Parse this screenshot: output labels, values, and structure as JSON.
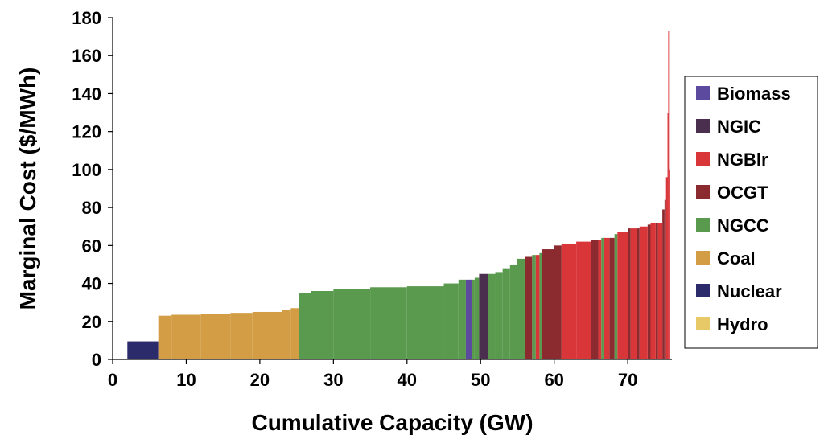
{
  "chart_data": {
    "type": "area",
    "xlabel": "Cumulative Capacity (GW)",
    "ylabel": "Marginal Cost ($/MWh)",
    "xlim": [
      0,
      76
    ],
    "ylim": [
      0,
      180
    ],
    "xticks": [
      0,
      10,
      20,
      30,
      40,
      50,
      60,
      70
    ],
    "yticks": [
      0,
      20,
      40,
      60,
      80,
      100,
      120,
      140,
      160,
      180
    ],
    "grid": false,
    "legend_position": "right",
    "legend": [
      {
        "name": "Biomass",
        "color": "#5b4a9e"
      },
      {
        "name": "NGIC",
        "color": "#4a2f4f"
      },
      {
        "name": "NGBlr",
        "color": "#d9363a"
      },
      {
        "name": "OCGT",
        "color": "#8b2a2f"
      },
      {
        "name": "NGCC",
        "color": "#5a9a4e"
      },
      {
        "name": "Coal",
        "color": "#d39d45"
      },
      {
        "name": "Nuclear",
        "color": "#2b2a6b"
      },
      {
        "name": "Hydro",
        "color": "#e8c968"
      }
    ],
    "series": [
      {
        "type": "Nuclear",
        "segments": [
          [
            2.0,
            6.2,
            9.5
          ]
        ]
      },
      {
        "type": "Coal",
        "segments": [
          [
            6.2,
            8,
            23
          ],
          [
            8,
            12,
            23.5
          ],
          [
            12,
            16,
            24
          ],
          [
            16,
            19,
            24.5
          ],
          [
            19,
            23,
            25
          ],
          [
            23,
            24.2,
            26
          ],
          [
            24.2,
            25.3,
            27
          ]
        ]
      },
      {
        "type": "NGCC",
        "segments": [
          [
            25.3,
            27,
            35
          ],
          [
            27,
            30,
            36
          ],
          [
            30,
            35,
            37
          ],
          [
            35,
            40,
            38
          ],
          [
            40,
            45,
            38.5
          ],
          [
            45,
            47,
            40
          ],
          [
            47,
            48,
            42
          ],
          [
            48.8,
            49.2,
            42
          ],
          [
            49.2,
            49.8,
            43
          ],
          [
            51,
            52,
            45
          ],
          [
            52,
            53,
            46
          ],
          [
            53,
            54,
            48
          ],
          [
            54,
            55,
            50
          ],
          [
            55,
            56,
            53
          ],
          [
            57,
            57.5,
            55
          ],
          [
            58,
            58.3,
            56
          ],
          [
            66.4,
            66.7,
            64
          ],
          [
            68.2,
            68.6,
            66
          ]
        ]
      },
      {
        "type": "Biomass",
        "segments": [
          [
            48.0,
            48.8,
            42
          ]
        ]
      },
      {
        "type": "NGIC",
        "segments": [
          [
            49.8,
            51.0,
            45
          ]
        ]
      },
      {
        "type": "OCGT",
        "segments": [
          [
            56,
            57,
            54
          ],
          [
            58.3,
            60,
            58
          ],
          [
            60,
            61,
            60
          ],
          [
            65,
            66,
            63
          ],
          [
            67.5,
            68.2,
            64
          ],
          [
            70,
            70.4,
            69
          ],
          [
            71.2,
            71.6,
            69
          ],
          [
            72.7,
            73.1,
            71
          ],
          [
            73.8,
            74.1,
            72
          ],
          [
            74.7,
            75.0,
            79
          ],
          [
            75.0,
            75.2,
            84
          ]
        ]
      },
      {
        "type": "NGBlr",
        "segments": [
          [
            57.5,
            58,
            55
          ],
          [
            61,
            63,
            61
          ],
          [
            63,
            65,
            62
          ],
          [
            66,
            66.4,
            63
          ],
          [
            66.7,
            67.5,
            64
          ],
          [
            68.6,
            70,
            67
          ],
          [
            70.4,
            71.2,
            69
          ],
          [
            71.6,
            72.7,
            70
          ],
          [
            73.1,
            73.8,
            72
          ],
          [
            74.1,
            74.7,
            72
          ],
          [
            75.2,
            75.4,
            96
          ],
          [
            75.4,
            75.5,
            130
          ],
          [
            75.5,
            75.6,
            173
          ],
          [
            75.6,
            75.7,
            100
          ]
        ]
      }
    ]
  }
}
